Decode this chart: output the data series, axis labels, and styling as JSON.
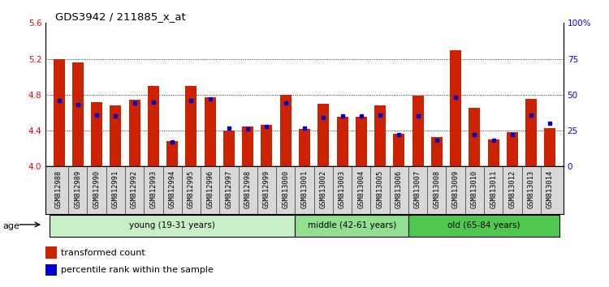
{
  "title": "GDS3942 / 211885_x_at",
  "samples": [
    "GSM812988",
    "GSM812989",
    "GSM812990",
    "GSM812991",
    "GSM812992",
    "GSM812993",
    "GSM812994",
    "GSM812995",
    "GSM812996",
    "GSM812997",
    "GSM812998",
    "GSM812999",
    "GSM813000",
    "GSM813001",
    "GSM813002",
    "GSM813003",
    "GSM813004",
    "GSM813005",
    "GSM813006",
    "GSM813007",
    "GSM813008",
    "GSM813009",
    "GSM813010",
    "GSM813011",
    "GSM813012",
    "GSM813013",
    "GSM813014"
  ],
  "red_values": [
    5.2,
    5.16,
    4.72,
    4.68,
    4.74,
    4.9,
    4.28,
    4.9,
    4.77,
    4.4,
    4.45,
    4.46,
    4.8,
    4.42,
    4.7,
    4.55,
    4.55,
    4.68,
    4.36,
    4.79,
    4.33,
    5.3,
    4.65,
    4.3,
    4.38,
    4.75,
    4.43
  ],
  "blue_values": [
    46,
    43,
    36,
    35,
    44,
    45,
    17,
    46,
    47,
    27,
    26,
    28,
    44,
    27,
    34,
    35,
    35,
    36,
    22,
    35,
    18,
    48,
    22,
    18,
    22,
    36,
    30
  ],
  "groups": [
    {
      "label": "young (19-31 years)",
      "start": 0,
      "end": 13,
      "color": "#c8f0c8"
    },
    {
      "label": "middle (42-61 years)",
      "start": 13,
      "end": 19,
      "color": "#90e090"
    },
    {
      "label": "old (65-84 years)",
      "start": 19,
      "end": 27,
      "color": "#50c850"
    }
  ],
  "ylim_left": [
    4.0,
    5.6
  ],
  "ylim_right": [
    0,
    100
  ],
  "yticks_left": [
    4.0,
    4.4,
    4.8,
    5.2,
    5.6
  ],
  "yticks_right": [
    0,
    25,
    50,
    75,
    100
  ],
  "ytick_labels_right": [
    "0",
    "25",
    "50",
    "75",
    "100%"
  ],
  "bar_color": "#cc2200",
  "dot_color": "#0000cc",
  "age_label": "age",
  "legend_items": [
    "transformed count",
    "percentile rank within the sample"
  ],
  "xtick_bg": "#d8d8d8"
}
